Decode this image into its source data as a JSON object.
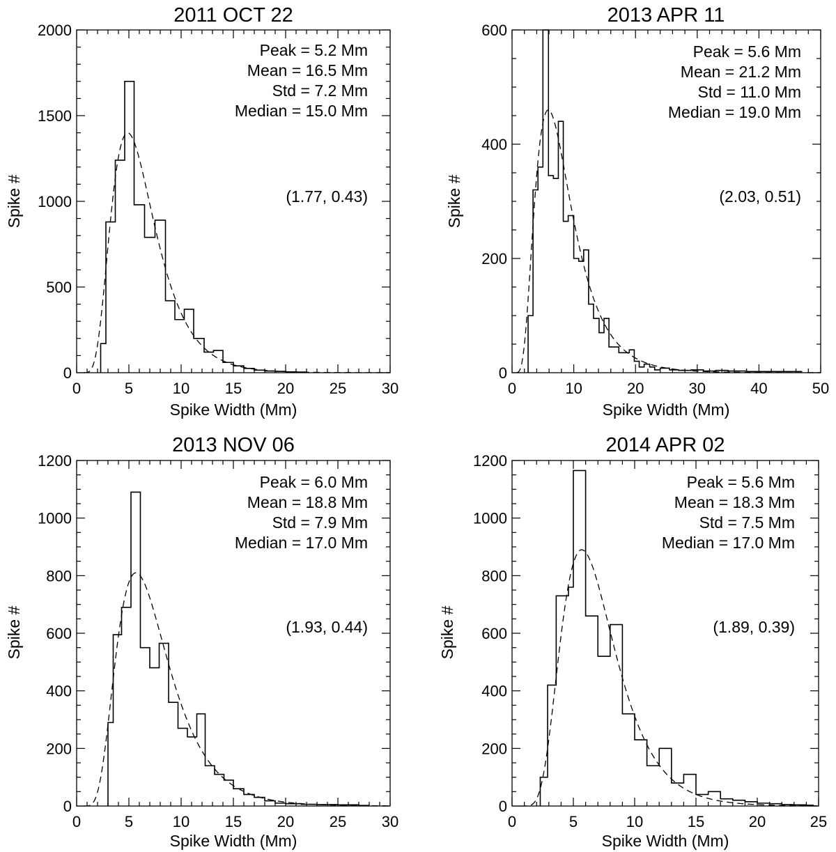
{
  "chart_data": [
    {
      "type": "bar",
      "title": "2011 OCT 22",
      "xlabel": "Spike Width (Mm)",
      "ylabel": "Spike #",
      "xlim": [
        0,
        30
      ],
      "ylim": [
        0,
        2000
      ],
      "xticks": [
        "0",
        "5",
        "10",
        "15",
        "20",
        "25",
        "30"
      ],
      "yticks": [
        "0",
        "500",
        "1000",
        "1500",
        "2000"
      ],
      "bin_edges": [
        2.3,
        2.8,
        3.7,
        4.6,
        5.5,
        6.5,
        7.5,
        8.5,
        9.4,
        10.3,
        11.2,
        12.2,
        13.1,
        14.0,
        15.0,
        16.0,
        17.0,
        18.0,
        19.0,
        20.0,
        21.0,
        22.0
      ],
      "counts": [
        170,
        880,
        1240,
        1700,
        980,
        790,
        890,
        420,
        310,
        370,
        200,
        120,
        130,
        60,
        40,
        25,
        15,
        10,
        8,
        5,
        4
      ],
      "fit": {
        "mu": 1.77,
        "sigma": 0.43,
        "peak": 1400
      },
      "stats": [
        "Peak = 5.2 Mm",
        "Mean = 16.5 Mm",
        "Std = 7.2 Mm",
        "Median = 15.0 Mm"
      ],
      "params": "(1.77, 0.43)"
    },
    {
      "type": "bar",
      "title": "2013 APR 11",
      "xlabel": "Spike Width (Mm)",
      "ylabel": "Spike #",
      "xlim": [
        0,
        50
      ],
      "ylim": [
        0,
        600
      ],
      "xticks": [
        "0",
        "10",
        "20",
        "30",
        "40",
        "50"
      ],
      "yticks": [
        "0",
        "200",
        "400",
        "600"
      ],
      "bin_edges": [
        2.6,
        3.4,
        4.2,
        5.0,
        5.9,
        6.7,
        7.5,
        8.3,
        9.1,
        10.0,
        10.8,
        11.6,
        12.4,
        13.2,
        14.1,
        14.9,
        15.7,
        16.5,
        17.3,
        18.2,
        19.0,
        19.8,
        20.6,
        21.4,
        22.3,
        23.1,
        24.0,
        25.5,
        27.0,
        29.0,
        31.0,
        33.0,
        35.0,
        38.0,
        41.0,
        44.0,
        47.0
      ],
      "counts": [
        100,
        320,
        360,
        600,
        345,
        340,
        440,
        265,
        275,
        200,
        195,
        215,
        120,
        95,
        70,
        95,
        45,
        45,
        35,
        35,
        40,
        20,
        10,
        15,
        10,
        5,
        8,
        5,
        4,
        5,
        3,
        4,
        3,
        2,
        2,
        2
      ],
      "fit": {
        "mu": 2.03,
        "sigma": 0.51,
        "peak": 460
      },
      "stats": [
        "Peak = 5.6 Mm",
        "Mean = 21.2 Mm",
        "Std = 11.0 Mm",
        "Median = 19.0 Mm"
      ],
      "params": "(2.03, 0.51)"
    },
    {
      "type": "bar",
      "title": "2013 NOV 06",
      "xlabel": "Spike Width (Mm)",
      "ylabel": "Spike #",
      "xlim": [
        0,
        30
      ],
      "ylim": [
        0,
        1200
      ],
      "xticks": [
        "0",
        "5",
        "10",
        "15",
        "20",
        "25",
        "30"
      ],
      "yticks": [
        "0",
        "200",
        "400",
        "600",
        "800",
        "1000",
        "1200"
      ],
      "bin_edges": [
        3.0,
        3.5,
        4.3,
        5.2,
        6.1,
        7.0,
        7.9,
        8.8,
        9.7,
        10.6,
        11.5,
        12.3,
        13.2,
        14.1,
        15.0,
        16.0,
        17.0,
        18.0,
        19.0,
        20.0,
        21.5,
        23.0,
        25.0,
        27.0,
        28.0
      ],
      "counts": [
        290,
        595,
        690,
        1090,
        550,
        480,
        565,
        360,
        270,
        240,
        320,
        140,
        110,
        90,
        60,
        40,
        30,
        18,
        10,
        8,
        6,
        5,
        4,
        2
      ],
      "fit": {
        "mu": 1.93,
        "sigma": 0.44,
        "peak": 810
      },
      "stats": [
        "Peak = 6.0 Mm",
        "Mean = 18.8 Mm",
        "Std = 7.9 Mm",
        "Median = 17.0 Mm"
      ],
      "params": "(1.93, 0.44)"
    },
    {
      "type": "bar",
      "title": "2014 APR 02",
      "xlabel": "Spike Width (Mm)",
      "ylabel": "Spike #",
      "xlim": [
        0,
        25
      ],
      "ylim": [
        0,
        1200
      ],
      "xticks": [
        "0",
        "5",
        "10",
        "15",
        "20",
        "25"
      ],
      "yticks": [
        "0",
        "200",
        "400",
        "600",
        "800",
        "1000",
        "1200"
      ],
      "bin_edges": [
        2.3,
        2.9,
        3.6,
        4.6,
        5.0,
        6.0,
        7.0,
        8.0,
        9.0,
        10.0,
        11.0,
        12.0,
        13.0,
        14.0,
        15.0,
        16.0,
        17.0,
        18.0,
        19.0,
        20.0,
        21.0,
        22.0,
        23.0,
        24.0,
        24.6
      ],
      "counts": [
        100,
        420,
        730,
        760,
        1165,
        660,
        520,
        630,
        320,
        230,
        140,
        200,
        80,
        110,
        40,
        50,
        25,
        20,
        15,
        10,
        8,
        5,
        4,
        3
      ],
      "fit": {
        "mu": 1.89,
        "sigma": 0.39,
        "peak": 890
      },
      "stats": [
        "Peak = 5.6 Mm",
        "Mean = 18.3 Mm",
        "Std = 7.5 Mm",
        "Median = 17.0 Mm"
      ],
      "params": "(1.89, 0.39)"
    }
  ]
}
